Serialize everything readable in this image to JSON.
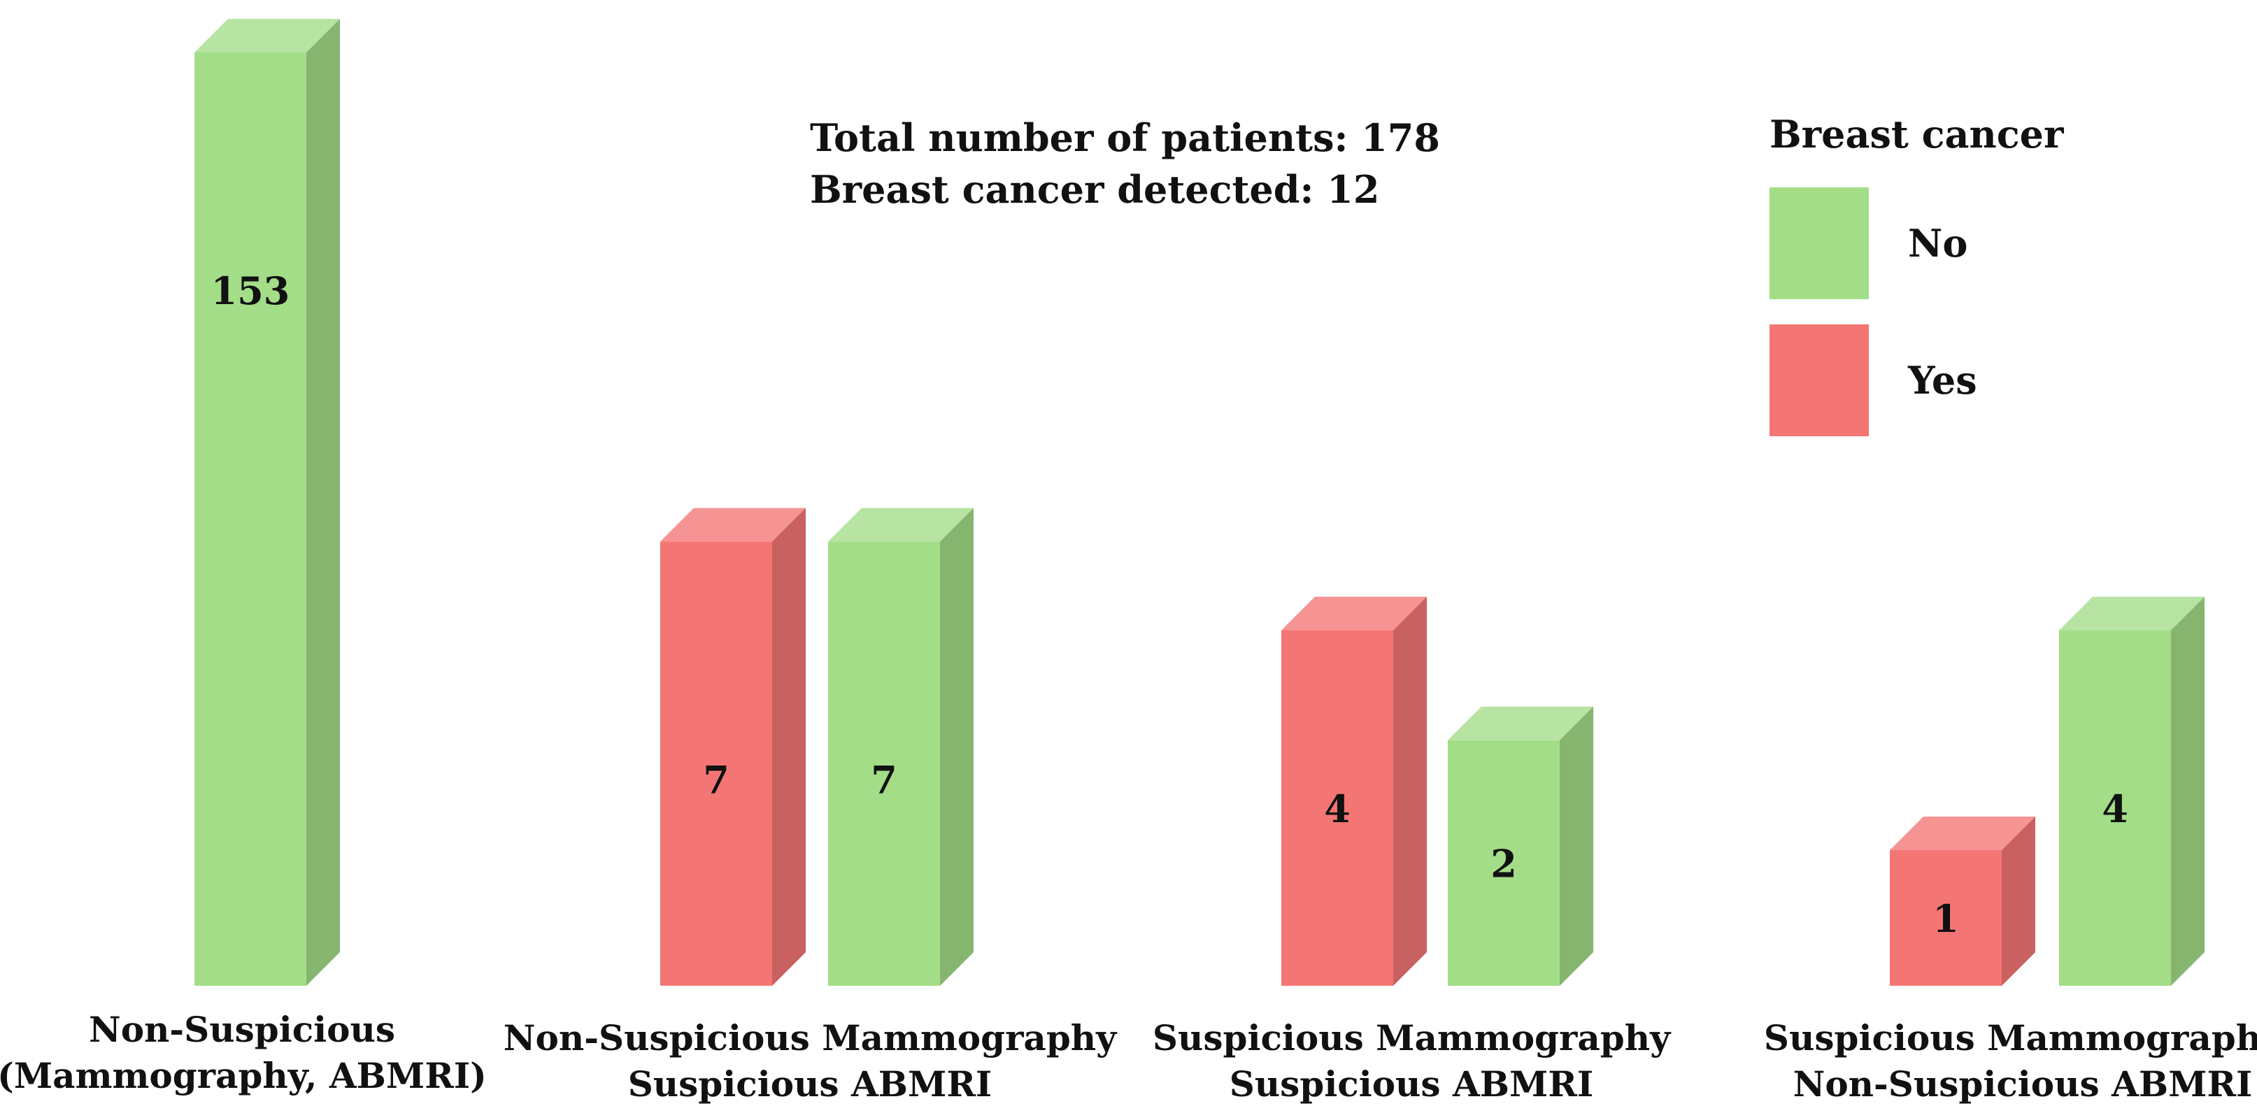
{
  "chart_data": {
    "type": "bar",
    "style": "3d-grouped",
    "categories": [
      [
        "Non-Suspicious",
        "(Mammography, ABMRI)"
      ],
      [
        "Non-Suspicious Mammography",
        "Suspicious ABMRI"
      ],
      [
        "Suspicious Mammography",
        "Suspicious ABMRI"
      ],
      [
        "Suspicious Mammography",
        "Non-Suspicious ABMRI"
      ]
    ],
    "series": [
      {
        "name": "Yes",
        "color": "#F47674",
        "values": [
          null,
          7,
          4,
          1
        ]
      },
      {
        "name": "No",
        "color": "#A3DD88",
        "values": [
          153,
          7,
          2,
          4
        ]
      }
    ],
    "legend": {
      "title": "Breast cancer",
      "placement": "top-right",
      "items": [
        {
          "label": "No",
          "color": "#A3DD88"
        },
        {
          "label": "Yes",
          "color": "#F47674"
        }
      ]
    },
    "annotations": [
      "Total number of patients: 178",
      "Breast cancer detected: 12"
    ],
    "axes_visible": false
  }
}
